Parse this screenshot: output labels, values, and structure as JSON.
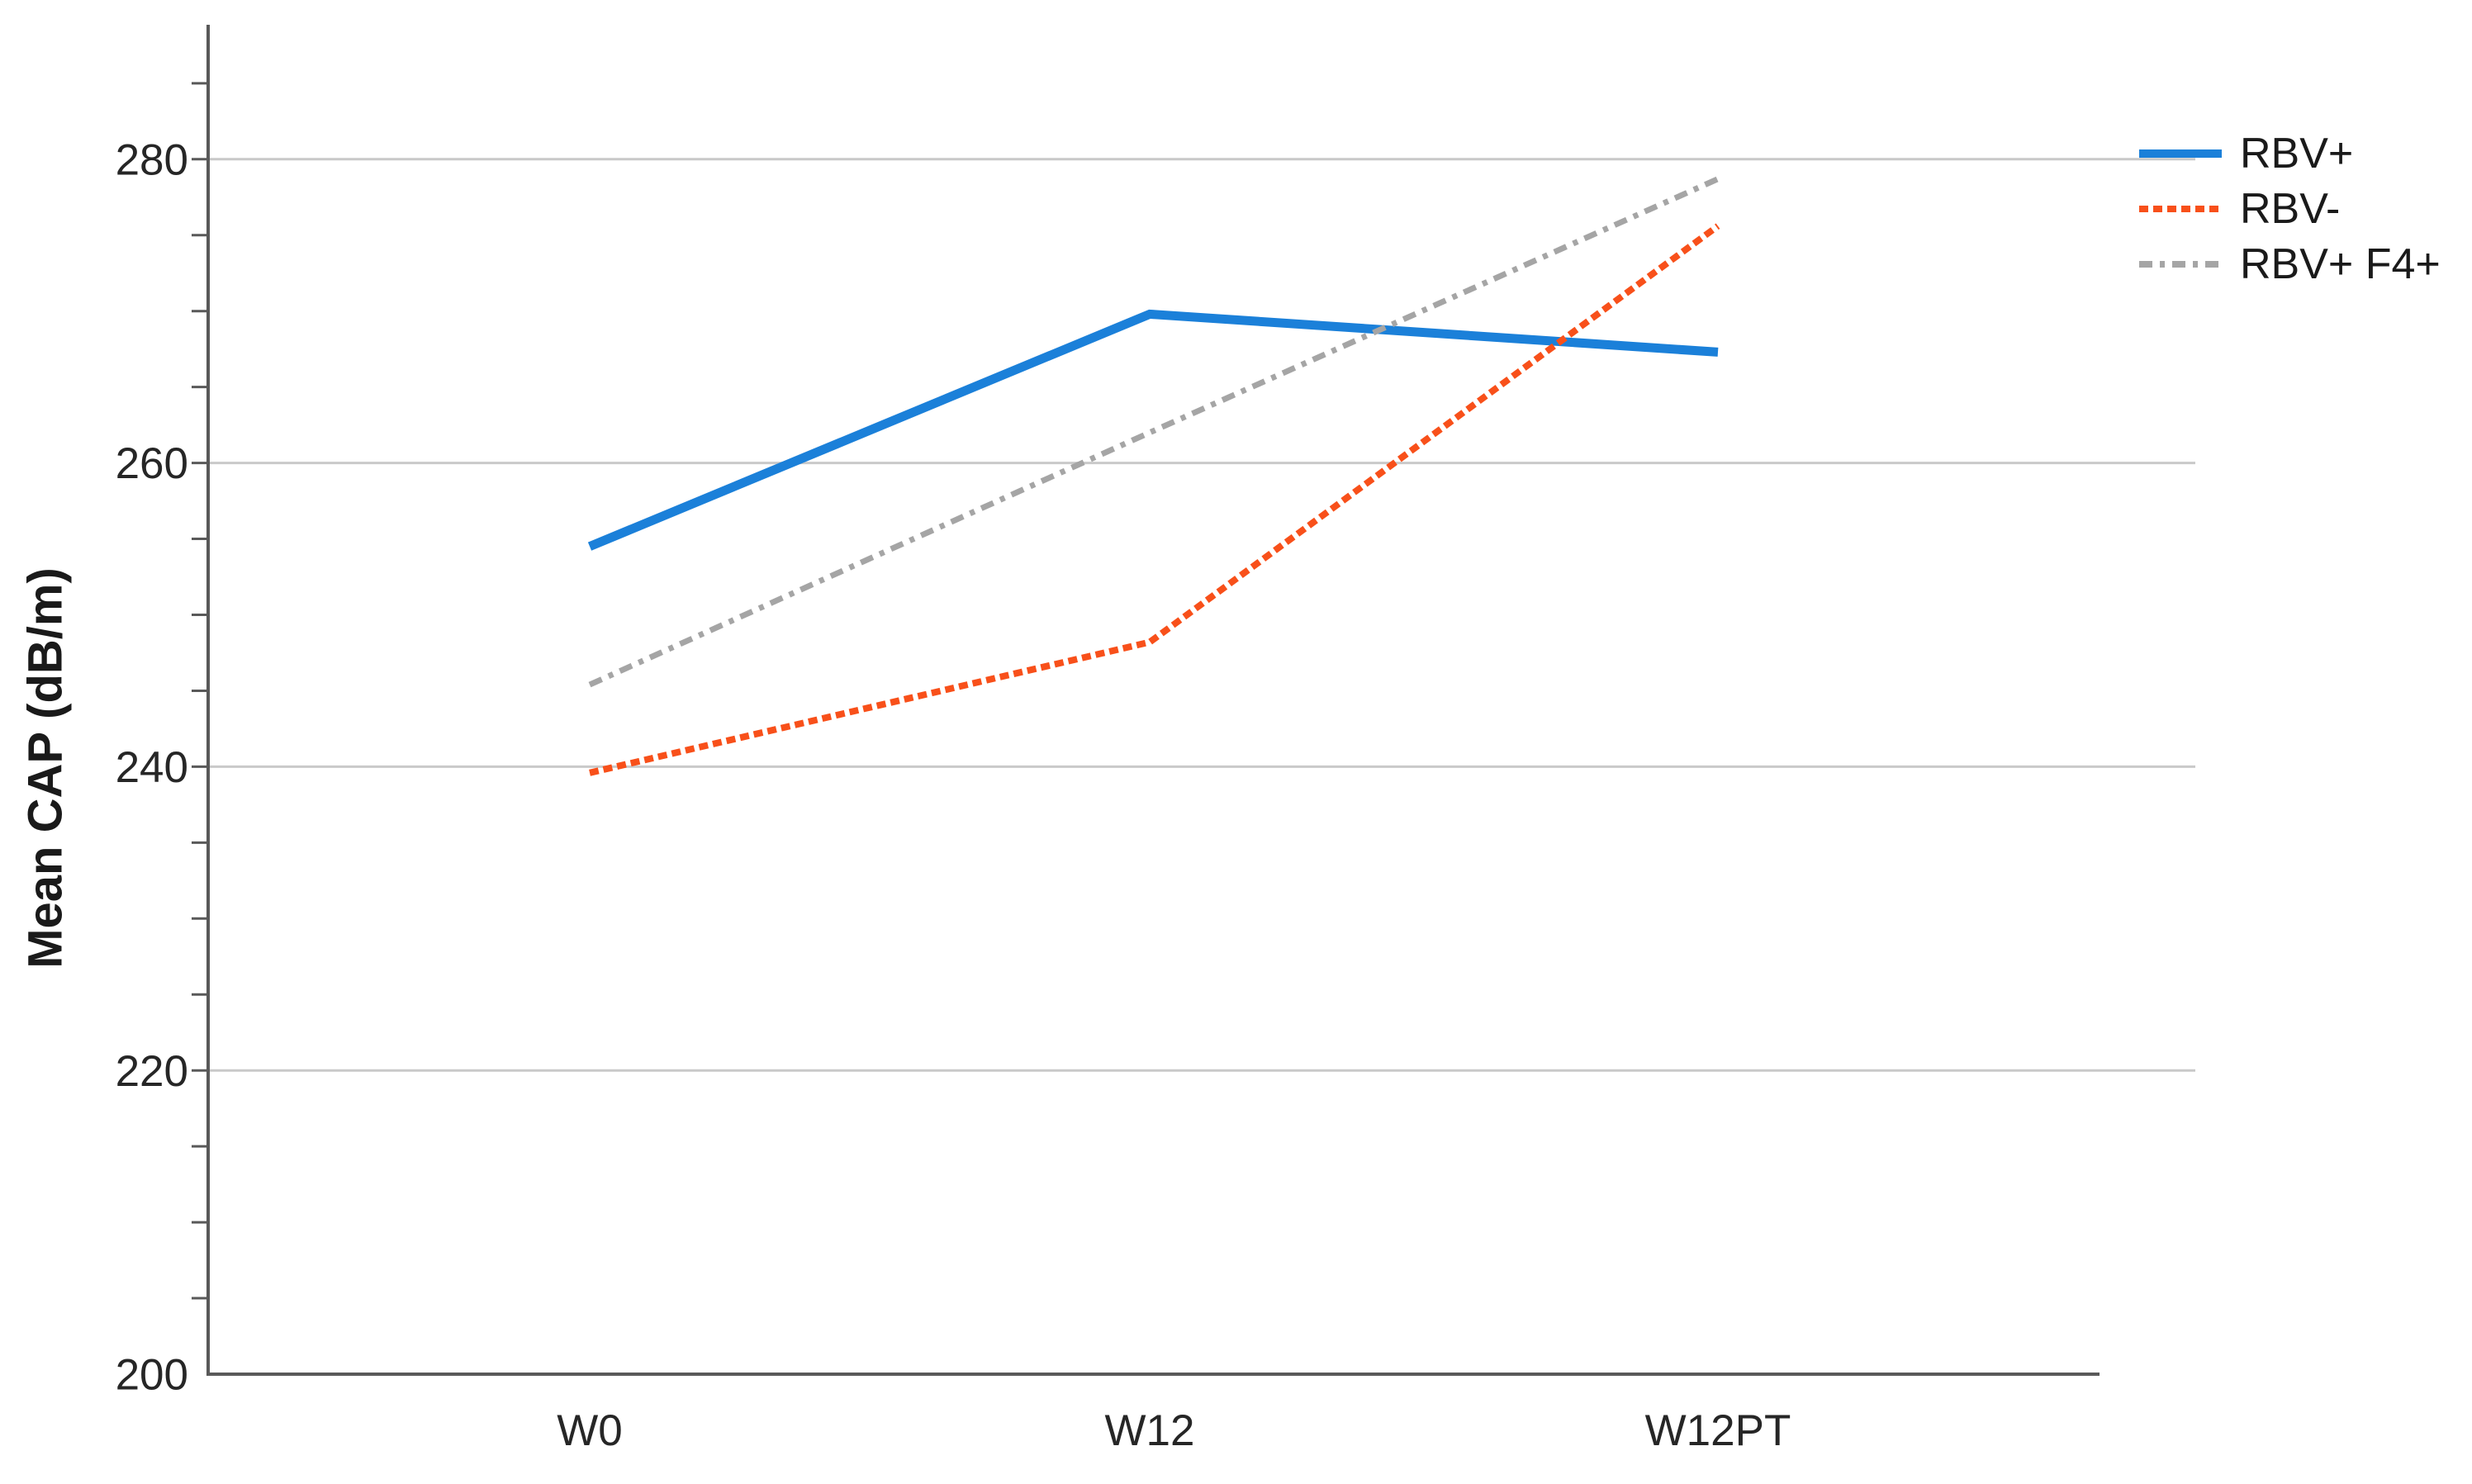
{
  "chart_data": {
    "type": "line",
    "title": "",
    "ylabel": "Mean CAP (dB/m)",
    "xlabel": "",
    "categories": [
      "W0",
      "W12",
      "W12PT"
    ],
    "series": [
      {
        "name": "RBV+",
        "values": [
          254.5,
          269.8,
          267.3
        ],
        "color": "#1b80d9",
        "line_style": "solid"
      },
      {
        "name": "RBV-",
        "values": [
          239.6,
          248.2,
          275.6
        ],
        "color": "#f8501a",
        "line_style": "dashed"
      },
      {
        "name": "RBV+ F4+",
        "values": [
          245.4,
          262.0,
          278.7
        ],
        "color": "#a5a5a5",
        "line_style": "dashdot"
      }
    ],
    "ylim": [
      200,
      289
    ],
    "yticks_major": [
      200,
      220,
      240,
      260,
      280
    ],
    "ytick_minor_step": 5,
    "grid": "horizontal-major",
    "legend_position": "right",
    "colors": {
      "gridline": "#c9c9c9",
      "axis": "#595959",
      "text": "#262626"
    }
  }
}
